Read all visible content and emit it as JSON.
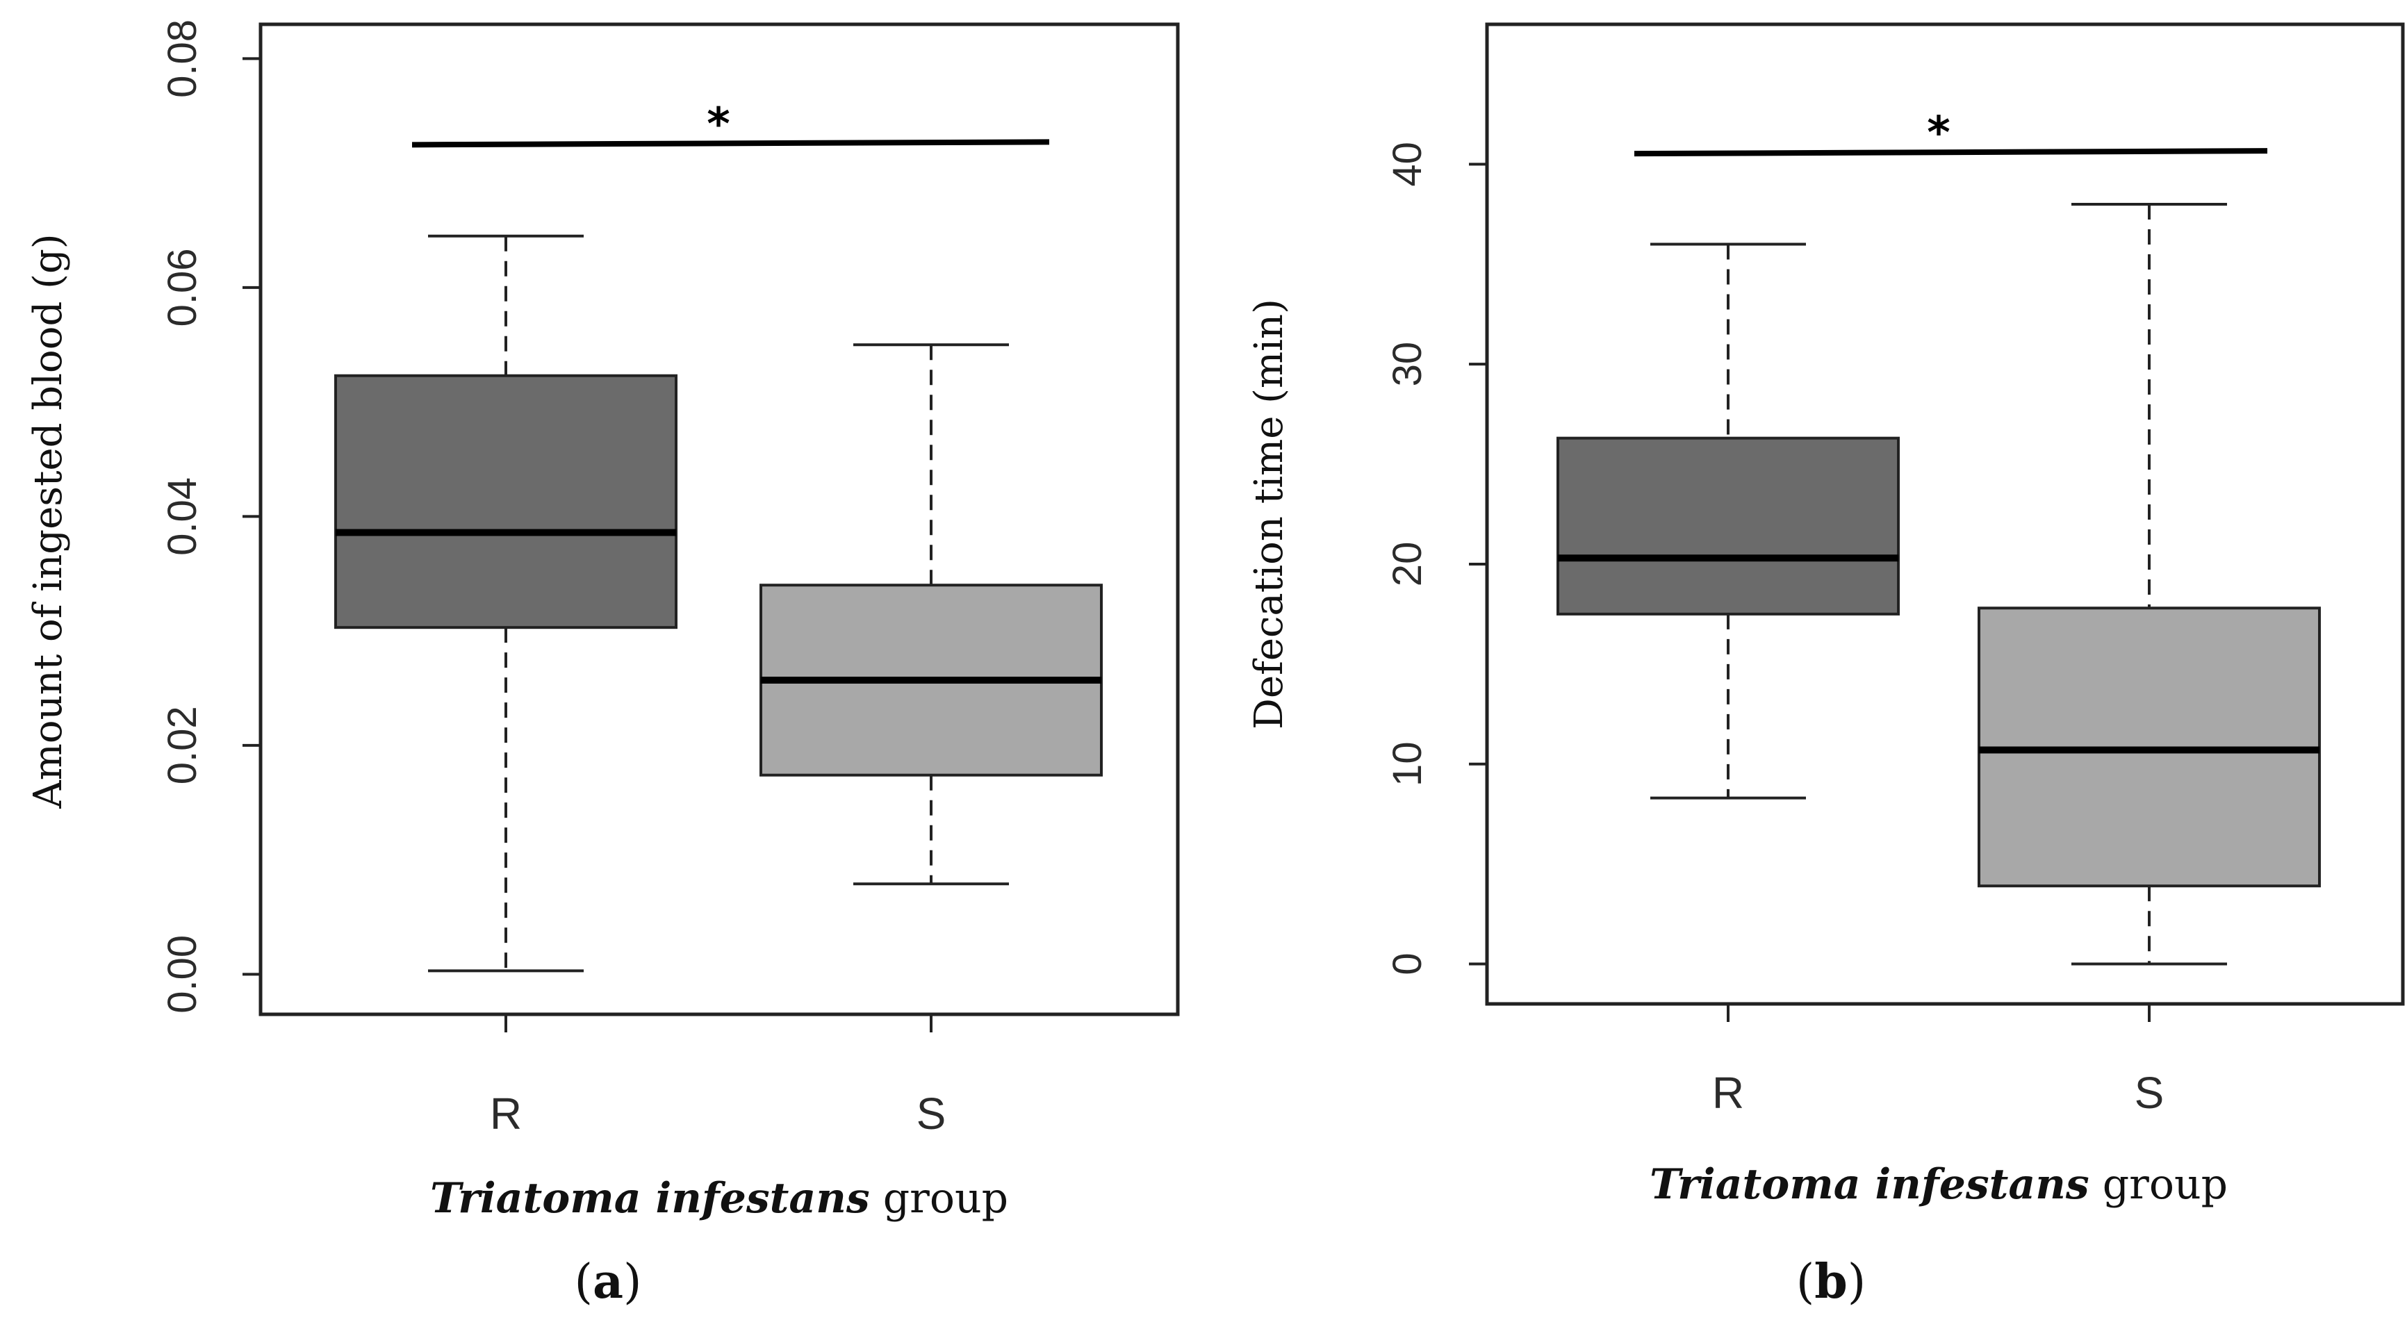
{
  "chart_data": [
    {
      "type": "box",
      "panel": "a",
      "panel_label": {
        "open": "(",
        "letter": "a",
        "close": ")"
      },
      "ylabel": "Amount of ingested blood (g)",
      "xlabel": {
        "italic_part": "Triatoma infestans",
        "plain_part": " group"
      },
      "ylim": [
        -0.0035,
        0.083
      ],
      "yticks": [
        "0.00",
        "0.02",
        "0.04",
        "0.06",
        "0.08"
      ],
      "tick_values": [
        0.0,
        0.02,
        0.04,
        0.06,
        0.08
      ],
      "categories": [
        "R",
        "S"
      ],
      "boxes": [
        {
          "category": "R",
          "min": 0.0003,
          "q1": 0.0303,
          "median": 0.0386,
          "q3": 0.0523,
          "max": 0.0645,
          "color": "#6b6b6b"
        },
        {
          "category": "S",
          "min": 0.0079,
          "q1": 0.0174,
          "median": 0.0257,
          "q3": 0.034,
          "max": 0.055,
          "color": "#a8a8a8"
        }
      ],
      "significance": {
        "y": 0.0726,
        "label": "*"
      }
    },
    {
      "type": "box",
      "panel": "b",
      "panel_label": {
        "open": "(",
        "letter": "b",
        "close": ")"
      },
      "ylabel": "Defecation time (min)",
      "xlabel": {
        "italic_part": "Triatoma infestans",
        "plain_part": " group"
      },
      "ylim": [
        -2,
        47
      ],
      "yticks": [
        "0",
        "10",
        "20",
        "30",
        "40"
      ],
      "tick_values": [
        0,
        10,
        20,
        30,
        40
      ],
      "categories": [
        "R",
        "S"
      ],
      "boxes": [
        {
          "category": "R",
          "min": 8.3,
          "q1": 17.5,
          "median": 20.3,
          "q3": 26.3,
          "max": 36.0,
          "color": "#6b6b6b"
        },
        {
          "category": "S",
          "min": 0.0,
          "q1": 3.9,
          "median": 10.7,
          "q3": 17.8,
          "max": 38.0,
          "color": "#a8a8a8"
        }
      ],
      "significance": {
        "y": 40.6,
        "label": "*"
      }
    }
  ]
}
